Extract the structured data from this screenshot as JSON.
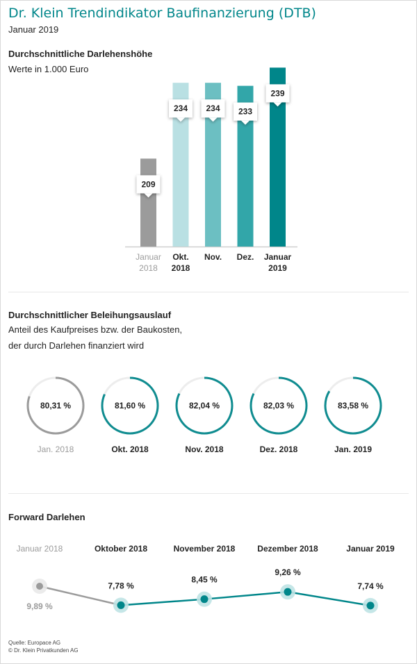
{
  "header": {
    "title": "Dr. Klein Trendindikator Baufinanzierung (DTB)",
    "subtitle": "Januar 2019"
  },
  "section1": {
    "title": "Durchschnittliche Darlehenshöhe",
    "subtitle": "Werte in 1.000 Euro"
  },
  "section2": {
    "title": "Durchschnittlicher Beleihungsauslauf",
    "subtitle_line1": "Anteil des Kaufpreises bzw. der Baukosten,",
    "subtitle_line2": "der durch Darlehen finanziert wird"
  },
  "section3": {
    "title": "Forward Darlehen"
  },
  "footer": {
    "source": "Quelle: Europace AG",
    "copyright": "© Dr. Klein Privatkunden AG"
  },
  "chart_data": [
    {
      "type": "bar",
      "categories": [
        [
          "Januar",
          "2018"
        ],
        [
          "Okt.",
          "2018"
        ],
        [
          "Nov."
        ],
        [
          "Dez."
        ],
        [
          "Januar",
          "2019"
        ]
      ],
      "values": [
        209,
        234,
        234,
        233,
        239
      ],
      "labels": [
        "209",
        "234",
        "234",
        "233",
        "239"
      ],
      "colors": [
        "#9b9b9b",
        "#b9e0e3",
        "#6cbfc2",
        "#32a6a9",
        "#00868a"
      ],
      "ylim": [
        180,
        240
      ]
    },
    {
      "type": "pie",
      "categories": [
        "Jan. 2018",
        "Okt. 2018",
        "Nov. 2018",
        "Dez. 2018",
        "Jan. 2019"
      ],
      "values": [
        80.31,
        81.6,
        82.04,
        82.03,
        83.58
      ],
      "labels": [
        "80,31 %",
        "81,60 %",
        "82,04 %",
        "82,03 %",
        "83,58 %"
      ],
      "colors": [
        "#9b9b9b",
        "#0f8c90",
        "#0f8c90",
        "#0f8c90",
        "#0f8c90"
      ]
    },
    {
      "type": "line",
      "categories": [
        "Januar 2018",
        "Oktober 2018",
        "November 2018",
        "Dezember 2018",
        "Januar 2019"
      ],
      "values": [
        9.89,
        7.78,
        8.45,
        9.26,
        7.74
      ],
      "labels": [
        "9,89 %",
        "7,78 %",
        "8,45 %",
        "9,26 %",
        "7,74 %"
      ],
      "colors": {
        "past": "#9b9b9b",
        "current": "#00868a"
      }
    }
  ]
}
